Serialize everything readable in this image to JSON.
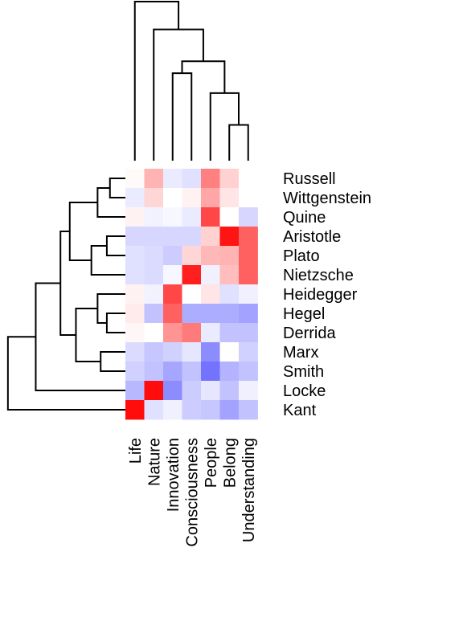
{
  "chart_data": {
    "type": "heatmap",
    "rows": [
      "Russell",
      "Wittgenstein",
      "Quine",
      "Aristotle",
      "Plato",
      "Nietzsche",
      "Heidegger",
      "Hegel",
      "Derrida",
      "Marx",
      "Smith",
      "Locke",
      "Kant"
    ],
    "columns": [
      "Life",
      "Nature",
      "Innovation",
      "Consciousness",
      "People",
      "Belong",
      "Understanding"
    ],
    "values": [
      [
        0.02,
        0.3,
        -0.08,
        -0.12,
        0.5,
        0.18,
        0.0
      ],
      [
        -0.08,
        0.16,
        0.0,
        0.05,
        0.35,
        0.1,
        0.0
      ],
      [
        0.05,
        -0.05,
        -0.03,
        -0.08,
        0.72,
        0.0,
        -0.16
      ],
      [
        -0.16,
        -0.16,
        -0.16,
        -0.16,
        0.18,
        0.92,
        0.62
      ],
      [
        -0.12,
        -0.14,
        -0.2,
        0.16,
        0.28,
        0.3,
        0.62
      ],
      [
        -0.12,
        -0.14,
        -0.03,
        0.88,
        -0.06,
        0.26,
        0.62
      ],
      [
        0.05,
        -0.05,
        0.72,
        0.0,
        0.1,
        -0.12,
        -0.06
      ],
      [
        0.08,
        -0.24,
        0.62,
        -0.32,
        -0.32,
        -0.32,
        -0.36
      ],
      [
        0.03,
        0.0,
        0.42,
        0.52,
        -0.08,
        -0.24,
        -0.24
      ],
      [
        -0.14,
        -0.22,
        -0.18,
        -0.1,
        -0.45,
        0.0,
        -0.18
      ],
      [
        -0.18,
        -0.24,
        -0.35,
        -0.24,
        -0.55,
        -0.3,
        -0.24
      ],
      [
        -0.28,
        0.95,
        -0.45,
        -0.2,
        -0.1,
        -0.24,
        -0.06
      ],
      [
        0.95,
        -0.12,
        -0.06,
        -0.2,
        -0.22,
        -0.36,
        -0.24
      ]
    ],
    "color_scale": {
      "low": "#0000ff",
      "mid": "#ffffff",
      "high": "#ff0000",
      "range": [
        -1,
        1
      ]
    },
    "row_dendrogram": [
      {
        "join": [
          "Russell",
          "Wittgenstein"
        ],
        "height": 0.25
      },
      {
        "join": [
          "Russell+Wittgenstein",
          "Quine"
        ],
        "height": 0.45
      },
      {
        "join": [
          "Aristotle",
          "Plato"
        ],
        "height": 0.3
      },
      {
        "join": [
          "Aristotle+Plato",
          "Nietzsche"
        ],
        "height": 0.55
      },
      {
        "join": [
          "Russell..Quine",
          "Aristotle..Nietzsche"
        ],
        "height": 0.9
      },
      {
        "join": [
          "Hegel",
          "Derrida"
        ],
        "height": 0.3
      },
      {
        "join": [
          "Heidegger",
          "Hegel+Derrida"
        ],
        "height": 0.45
      },
      {
        "join": [
          "Marx",
          "Smith"
        ],
        "height": 0.4
      },
      {
        "join": [
          "Heidegger..Derrida",
          "Marx+Smith"
        ],
        "height": 0.8
      },
      {
        "join": [
          "Russell..Nietzsche",
          "Heidegger..Smith"
        ],
        "height": 1.05
      },
      {
        "join": [
          "Russell..Smith",
          "Locke"
        ],
        "height": 1.45
      },
      {
        "join": [
          "Russell..Locke",
          "Kant"
        ],
        "height": 1.9
      }
    ],
    "column_dendrogram": [
      {
        "join": [
          "Belong",
          "Understanding"
        ],
        "height": 0.45
      },
      {
        "join": [
          "People",
          "Belong+Understanding"
        ],
        "height": 0.85
      },
      {
        "join": [
          "Innovation",
          "Consciousness"
        ],
        "height": 1.1
      },
      {
        "join": [
          "Innovation+Consciousness",
          "People..Understanding"
        ],
        "height": 1.25
      },
      {
        "join": [
          "Nature",
          "Innovation..Understanding"
        ],
        "height": 1.65
      },
      {
        "join": [
          "Life",
          "Nature..Understanding"
        ],
        "height": 2.0
      }
    ],
    "title": "",
    "xlabel": "",
    "ylabel": ""
  }
}
